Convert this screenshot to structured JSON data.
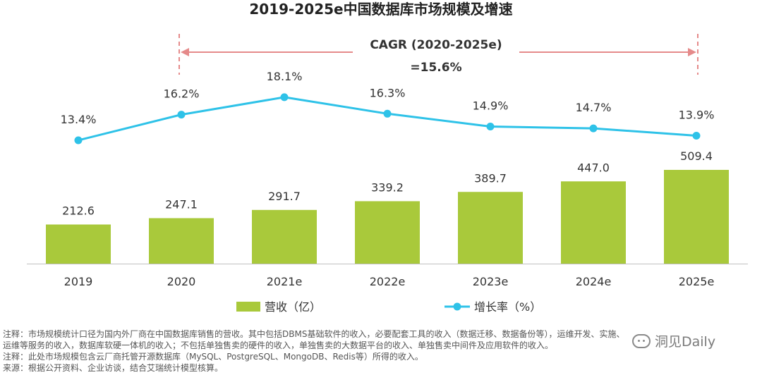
{
  "chart_data": {
    "type": "bar",
    "title": "2019-2025e中国数据库市场规模及增速",
    "categories": [
      "2019",
      "2020",
      "2021e",
      "2022e",
      "2023e",
      "2024e",
      "2025e"
    ],
    "series": [
      {
        "name": "营收（亿）",
        "type": "bar",
        "color": "#a9c93b",
        "values": [
          212.6,
          247.1,
          291.7,
          339.2,
          389.7,
          447.0,
          509.4
        ],
        "labels": [
          "212.6",
          "247.1",
          "291.7",
          "339.2",
          "389.7",
          "447.0",
          "509.4"
        ]
      },
      {
        "name": "增长率（%）",
        "type": "line",
        "color": "#2ec2e8",
        "values": [
          13.4,
          16.2,
          18.1,
          16.3,
          14.9,
          14.7,
          13.9
        ],
        "labels": [
          "13.4%",
          "16.2%",
          "18.1%",
          "16.3%",
          "14.9%",
          "14.7%",
          "13.9%"
        ]
      }
    ],
    "annotation": {
      "line1": "CAGR (2020-2025e)",
      "line2": "=15.6%",
      "arrow_color": "#e58a8a"
    },
    "legend_position": "bottom",
    "grid": false
  },
  "notes": [
    "注释：市场规模统计口径为国内外厂商在中国数据库销售的营收。其中包括DBMS基础软件的收入，必要配套工具的收入（数据迁移、数据备份等），运维开发、实施、",
    "运维等服务的收入，数据库软硬一体机的收入；不包括单独售卖的硬件的收入，单独售卖的大数据平台的收入、单独售卖中间件及应用软件的收入。",
    "注释：此处市场规模包含云厂商托管开源数据库（MySQL、PostgreSQL、MongoDB、Redis等）所得的收入。",
    "来源：根据公开资料、企业访谈，结合艾瑞统计模型核算。"
  ],
  "watermark": "洞见Daily"
}
